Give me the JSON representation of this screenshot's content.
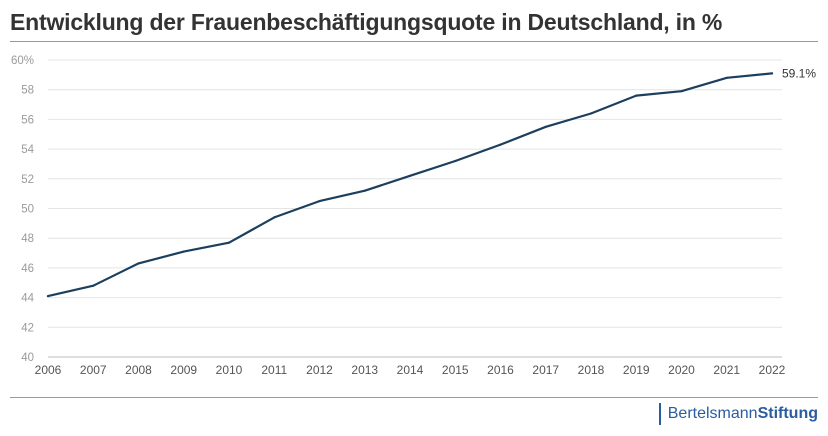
{
  "chart_data": {
    "type": "line",
    "title": "Entwicklung der Frauenbeschäftigungsquote in Deutschland, in %",
    "x": [
      "2006",
      "2007",
      "2008",
      "2009",
      "2010",
      "2011",
      "2012",
      "2013",
      "2014",
      "2015",
      "2016",
      "2017",
      "2018",
      "2019",
      "2020",
      "2021",
      "2022"
    ],
    "series": [
      {
        "name": "Frauenbeschäftigungsquote",
        "values": [
          44.1,
          44.8,
          46.3,
          47.1,
          47.7,
          49.4,
          50.5,
          51.2,
          52.2,
          53.2,
          54.3,
          55.5,
          56.4,
          57.6,
          57.9,
          58.8,
          59.1
        ]
      }
    ],
    "ylim": [
      40,
      60
    ],
    "yticks": [
      40,
      42,
      44,
      46,
      48,
      50,
      52,
      54,
      56,
      58,
      60
    ],
    "ytick_labels": [
      "40",
      "42",
      "44",
      "46",
      "48",
      "50",
      "52",
      "54",
      "56",
      "58",
      "60%"
    ],
    "end_label": "59.1%",
    "xlabel": "",
    "ylabel": "",
    "grid": true,
    "line_color": "#1d3f5e"
  },
  "brand": {
    "part1": "Bertelsmann",
    "part2": "Stiftung"
  }
}
